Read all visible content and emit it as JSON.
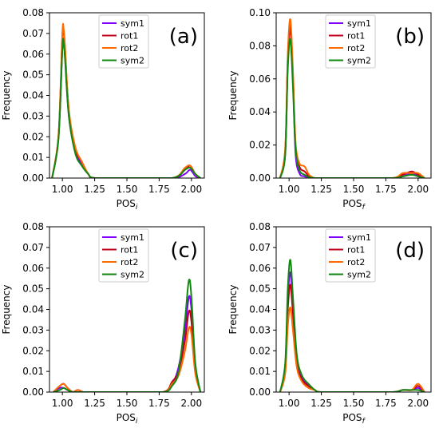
{
  "colors": {
    "sym1": "#7f00ff",
    "rot1": "#c0001a",
    "rot2": "#ff6a00",
    "sym2": "#118811"
  },
  "chart_data": [
    {
      "type": "line",
      "panel_label": "(a)",
      "xlabel": "POS",
      "xlabel_sub": "i",
      "ylabel": "Frequency",
      "xlim": [
        0.9,
        2.1
      ],
      "ylim": [
        0,
        0.08
      ],
      "xticks": [
        "1.00",
        "1.25",
        "1.50",
        "1.75",
        "2.00"
      ],
      "yticks": [
        "0.00",
        "0.01",
        "0.02",
        "0.03",
        "0.04",
        "0.05",
        "0.06",
        "0.07",
        "0.08"
      ],
      "legend_position": "top-center",
      "series": [
        {
          "name": "sym1",
          "color": "#7f00ff",
          "x": [
            0.92,
            0.97,
            1.0,
            1.01,
            1.02,
            1.05,
            1.1,
            1.15,
            1.2,
            1.25,
            1.5,
            1.85,
            1.95,
            1.99,
            2.03,
            2.07
          ],
          "y": [
            0,
            0.02,
            0.063,
            0.066,
            0.06,
            0.03,
            0.013,
            0.007,
            0.002,
            0,
            0,
            0,
            0.002,
            0.004,
            0.001,
            0
          ]
        },
        {
          "name": "rot1",
          "color": "#c0001a",
          "x": [
            0.92,
            0.97,
            1.0,
            1.01,
            1.02,
            1.05,
            1.1,
            1.15,
            1.2,
            1.25,
            1.5,
            1.85,
            1.95,
            1.99,
            2.03,
            2.07
          ],
          "y": [
            0,
            0.02,
            0.069,
            0.071,
            0.063,
            0.032,
            0.014,
            0.008,
            0.002,
            0,
            0,
            0,
            0.004,
            0.006,
            0.002,
            0
          ]
        },
        {
          "name": "rot2",
          "color": "#ff6a00",
          "x": [
            0.92,
            0.97,
            1.0,
            1.01,
            1.02,
            1.05,
            1.1,
            1.15,
            1.2,
            1.25,
            1.5,
            1.85,
            1.95,
            1.99,
            2.03,
            2.07
          ],
          "y": [
            0,
            0.021,
            0.07,
            0.072,
            0.064,
            0.033,
            0.015,
            0.008,
            0.002,
            0,
            0,
            0,
            0.005,
            0.006,
            0.002,
            0
          ]
        },
        {
          "name": "sym2",
          "color": "#118811",
          "x": [
            0.92,
            0.97,
            1.0,
            1.01,
            1.02,
            1.05,
            1.1,
            1.15,
            1.2,
            1.25,
            1.5,
            1.85,
            1.95,
            1.99,
            2.03,
            2.07
          ],
          "y": [
            0,
            0.019,
            0.063,
            0.065,
            0.058,
            0.03,
            0.012,
            0.006,
            0.002,
            0,
            0,
            0,
            0.004,
            0.005,
            0.002,
            0
          ]
        }
      ]
    },
    {
      "type": "line",
      "panel_label": "(b)",
      "xlabel": "POS",
      "xlabel_sub": "f",
      "ylabel": "Frequency",
      "xlim": [
        0.9,
        2.1
      ],
      "ylim": [
        0,
        0.1
      ],
      "xticks": [
        "1.00",
        "1.25",
        "1.50",
        "1.75",
        "2.00"
      ],
      "yticks": [
        "0.00",
        "0.02",
        "0.04",
        "0.06",
        "0.08",
        "0.10"
      ],
      "legend_position": "top-center",
      "series": [
        {
          "name": "sym1",
          "color": "#7f00ff",
          "x": [
            0.93,
            0.97,
            0.99,
            1.01,
            1.03,
            1.05,
            1.08,
            1.12,
            1.2,
            1.5,
            1.8,
            1.88,
            1.95,
            2.0,
            2.05
          ],
          "y": [
            0,
            0.015,
            0.07,
            0.09,
            0.06,
            0.015,
            0.003,
            0.001,
            0,
            0,
            0,
            0.001,
            0.003,
            0.001,
            0
          ]
        },
        {
          "name": "rot1",
          "color": "#c0001a",
          "x": [
            0.93,
            0.97,
            0.99,
            1.01,
            1.03,
            1.05,
            1.08,
            1.12,
            1.2,
            1.5,
            1.8,
            1.88,
            1.95,
            2.0,
            2.05
          ],
          "y": [
            0,
            0.016,
            0.072,
            0.094,
            0.062,
            0.02,
            0.007,
            0.004,
            0,
            0,
            0,
            0.002,
            0.004,
            0.002,
            0
          ]
        },
        {
          "name": "rot2",
          "color": "#ff6a00",
          "x": [
            0.93,
            0.97,
            0.99,
            1.01,
            1.03,
            1.05,
            1.08,
            1.12,
            1.2,
            1.5,
            1.8,
            1.88,
            1.95,
            2.0,
            2.05
          ],
          "y": [
            0,
            0.018,
            0.075,
            0.096,
            0.065,
            0.022,
            0.009,
            0.007,
            0,
            0,
            0,
            0.003,
            0.003,
            0.003,
            0
          ]
        },
        {
          "name": "sym2",
          "color": "#118811",
          "x": [
            0.93,
            0.97,
            0.99,
            1.01,
            1.03,
            1.05,
            1.08,
            1.12,
            1.2,
            1.5,
            1.8,
            1.88,
            1.95,
            2.0,
            2.05
          ],
          "y": [
            0,
            0.014,
            0.066,
            0.084,
            0.055,
            0.018,
            0.005,
            0.002,
            0,
            0,
            0,
            0.001,
            0.002,
            0.001,
            0
          ]
        }
      ]
    },
    {
      "type": "line",
      "panel_label": "(c)",
      "xlabel": "POS",
      "xlabel_sub": "i",
      "ylabel": "Frequency",
      "xlim": [
        0.9,
        2.1
      ],
      "ylim": [
        0,
        0.08
      ],
      "xticks": [
        "1.00",
        "1.25",
        "1.50",
        "1.75",
        "2.00"
      ],
      "yticks": [
        "0.00",
        "0.01",
        "0.02",
        "0.03",
        "0.04",
        "0.05",
        "0.06",
        "0.07",
        "0.08"
      ],
      "legend_position": "top-center",
      "series": [
        {
          "name": "sym1",
          "color": "#7f00ff",
          "x": [
            0.93,
            0.98,
            1.01,
            1.04,
            1.08,
            1.12,
            1.16,
            1.2,
            1.5,
            1.78,
            1.85,
            1.9,
            1.95,
            1.98,
            2.0,
            2.03,
            2.07
          ],
          "y": [
            0,
            0.002,
            0.002,
            0.001,
            0,
            0.001,
            0,
            0,
            0,
            0,
            0.004,
            0.012,
            0.03,
            0.046,
            0.04,
            0.012,
            0
          ]
        },
        {
          "name": "rot1",
          "color": "#c0001a",
          "x": [
            0.93,
            0.98,
            1.01,
            1.04,
            1.08,
            1.12,
            1.16,
            1.2,
            1.5,
            1.78,
            1.85,
            1.9,
            1.95,
            1.98,
            2.0,
            2.03,
            2.07
          ],
          "y": [
            0,
            0.003,
            0.004,
            0.002,
            0,
            0.001,
            0,
            0,
            0,
            0,
            0.005,
            0.01,
            0.025,
            0.039,
            0.034,
            0.01,
            0
          ]
        },
        {
          "name": "rot2",
          "color": "#ff6a00",
          "x": [
            0.93,
            0.98,
            1.01,
            1.04,
            1.08,
            1.12,
            1.16,
            1.2,
            1.5,
            1.78,
            1.85,
            1.9,
            1.95,
            1.98,
            2.0,
            2.03,
            2.07
          ],
          "y": [
            0,
            0.003,
            0.004,
            0.002,
            0,
            0.001,
            0,
            0,
            0,
            0,
            0.004,
            0.008,
            0.02,
            0.031,
            0.028,
            0.009,
            0
          ]
        },
        {
          "name": "sym2",
          "color": "#118811",
          "x": [
            0.93,
            0.98,
            1.01,
            1.04,
            1.08,
            1.12,
            1.16,
            1.2,
            1.5,
            1.78,
            1.85,
            1.9,
            1.95,
            1.98,
            2.0,
            2.03,
            2.07
          ],
          "y": [
            0,
            0.001,
            0.002,
            0.001,
            0,
            0,
            0,
            0,
            0,
            0,
            0.003,
            0.01,
            0.035,
            0.054,
            0.046,
            0.014,
            0
          ]
        }
      ]
    },
    {
      "type": "line",
      "panel_label": "(d)",
      "xlabel": "POS",
      "xlabel_sub": "f",
      "ylabel": "Frequency",
      "xlim": [
        0.9,
        2.1
      ],
      "ylim": [
        0,
        0.08
      ],
      "xticks": [
        "1.00",
        "1.25",
        "1.50",
        "1.75",
        "2.00"
      ],
      "yticks": [
        "0.00",
        "0.01",
        "0.02",
        "0.03",
        "0.04",
        "0.05",
        "0.06",
        "0.07",
        "0.08"
      ],
      "legend_position": "top-center",
      "series": [
        {
          "name": "sym1",
          "color": "#7f00ff",
          "x": [
            0.93,
            0.97,
            0.99,
            1.01,
            1.03,
            1.06,
            1.1,
            1.15,
            1.2,
            1.25,
            1.5,
            1.8,
            1.88,
            1.95,
            2.0,
            2.05
          ],
          "y": [
            0,
            0.012,
            0.045,
            0.058,
            0.042,
            0.015,
            0.007,
            0.003,
            0.001,
            0,
            0,
            0,
            0.001,
            0.001,
            0.002,
            0
          ]
        },
        {
          "name": "rot1",
          "color": "#c0001a",
          "x": [
            0.93,
            0.97,
            0.99,
            1.01,
            1.03,
            1.06,
            1.1,
            1.15,
            1.2,
            1.25,
            1.5,
            1.8,
            1.88,
            1.95,
            2.0,
            2.05
          ],
          "y": [
            0,
            0.011,
            0.04,
            0.052,
            0.038,
            0.014,
            0.006,
            0.003,
            0.001,
            0,
            0,
            0,
            0.001,
            0.001,
            0.003,
            0
          ]
        },
        {
          "name": "rot2",
          "color": "#ff6a00",
          "x": [
            0.93,
            0.97,
            0.99,
            1.01,
            1.03,
            1.06,
            1.1,
            1.15,
            1.2,
            1.25,
            1.5,
            1.8,
            1.88,
            1.95,
            2.0,
            2.05
          ],
          "y": [
            0,
            0.009,
            0.032,
            0.041,
            0.03,
            0.012,
            0.005,
            0.002,
            0.001,
            0,
            0,
            0,
            0.001,
            0.001,
            0.004,
            0
          ]
        },
        {
          "name": "sym2",
          "color": "#118811",
          "x": [
            0.93,
            0.97,
            0.99,
            1.01,
            1.03,
            1.06,
            1.1,
            1.15,
            1.2,
            1.25,
            1.5,
            1.8,
            1.88,
            1.95,
            2.0,
            2.05
          ],
          "y": [
            0,
            0.014,
            0.05,
            0.064,
            0.046,
            0.018,
            0.008,
            0.004,
            0.001,
            0,
            0,
            0,
            0.001,
            0.001,
            0.001,
            0
          ]
        }
      ]
    }
  ]
}
